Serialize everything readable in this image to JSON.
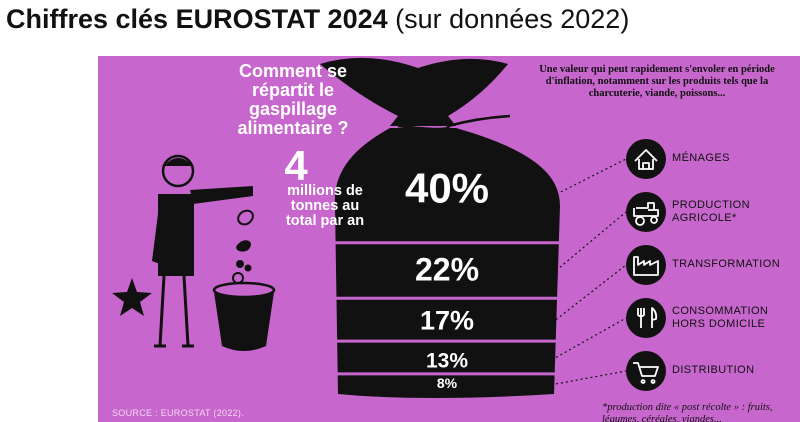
{
  "title": {
    "bold": "Chiffres clés EUROSTAT 2024",
    "light": "(sur données 2022)"
  },
  "infographic": {
    "question": "Comment se répartit le gaspillage alimentaire ?",
    "total_value": "4",
    "total_text": "millions de tonnes au total par an",
    "note": "Une valeur qui peut rapidement s'envoler en période d'inflation, notamment sur les produits tels que la charcuterie, viande, poissons...",
    "footnote": "*production dite « post récolte » : fruits, légumes, céréales, viandes...",
    "source": "SOURCE : EUROSTAT (2022).",
    "colors": {
      "background": "#c766cc",
      "bag": "#111111",
      "text_light": "#ffffff"
    }
  },
  "chart_data": {
    "type": "bar",
    "title": "Comment se répartit le gaspillage alimentaire ?",
    "categories": [
      "MÉNAGES",
      "PRODUCTION AGRICOLE*",
      "TRANSFORMATION",
      "CONSOMMATION HORS DOMICILE",
      "DISTRIBUTION"
    ],
    "values": [
      40,
      22,
      17,
      13,
      8
    ],
    "value_labels": [
      "40%",
      "22%",
      "17%",
      "13%",
      "8%"
    ],
    "unit": "%",
    "icons": [
      "house-icon",
      "tractor-icon",
      "factory-icon",
      "cutlery-icon",
      "cart-icon"
    ]
  }
}
